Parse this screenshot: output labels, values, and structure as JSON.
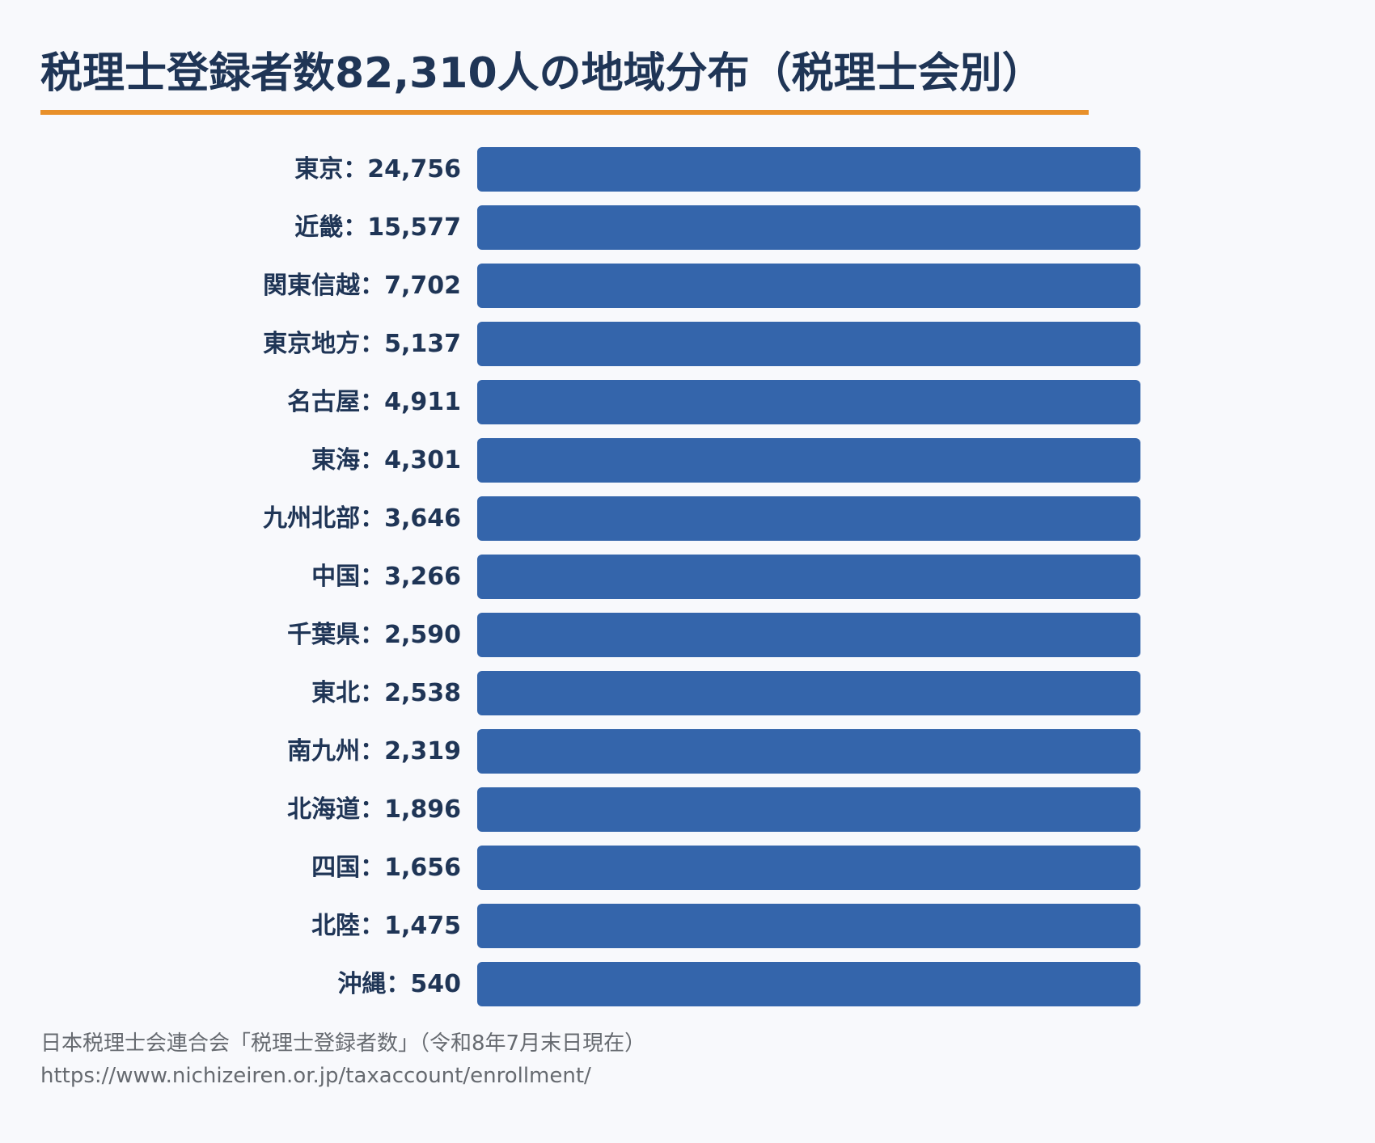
{
  "title": "税理士登録者数82,310人の地域分布（税理士会別）",
  "colors": {
    "accent_rule": "#e8902a",
    "bar": "#3465ab",
    "title": "#1f3556",
    "source": "#666a70"
  },
  "chart_data": {
    "type": "bar",
    "orientation": "horizontal",
    "title": "税理士登録者数82,310人の地域分布（税理士会別）",
    "categories": [
      "東京",
      "近畿",
      "関東信越",
      "東京地方",
      "名古屋",
      "東海",
      "九州北部",
      "中国",
      "千葉県",
      "東北",
      "南九州",
      "北海道",
      "四国",
      "北陸",
      "沖縄"
    ],
    "values": [
      24756,
      15577,
      7702,
      5137,
      4911,
      4301,
      3646,
      3266,
      2590,
      2538,
      2319,
      1896,
      1656,
      1475,
      540
    ],
    "labels": [
      "東京：24,756",
      "近畿：15,577",
      "関東信越：7,702",
      "東京地方：5,137",
      "名古屋：4,911",
      "東海：4,301",
      "九州北部：3,646",
      "中国：3,266",
      "千葉県：2,590",
      "東北：2,538",
      "南九州：2,319",
      "北海道：1,896",
      "四国：1,656",
      "北陸：1,475",
      "沖縄：540"
    ],
    "bar_length": "equal",
    "grid": false,
    "legend": "none"
  },
  "source": {
    "text": "日本税理士会連合会「税理士登録者数」（令和8年7月末日現在）",
    "url": "https://www.nichizeiren.or.jp/taxaccount/enrollment/"
  }
}
